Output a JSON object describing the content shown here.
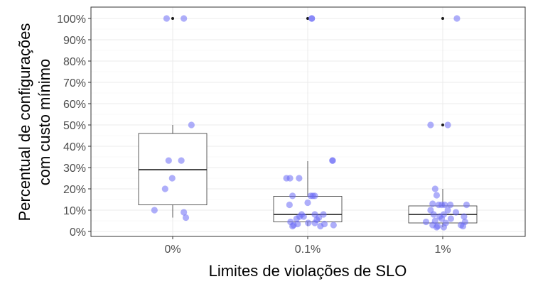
{
  "chart_data": {
    "type": "box",
    "title": "",
    "xlabel": "Limites de violações de SLO",
    "ylabel_lines": [
      "Percentual de configurações",
      "com custo mínimo"
    ],
    "categories": [
      "0%",
      "0.1%",
      "1%"
    ],
    "ylim": [
      0,
      100
    ],
    "yticks": [
      0,
      10,
      20,
      30,
      40,
      50,
      60,
      70,
      80,
      90,
      100
    ],
    "ytick_labels": [
      "0%",
      "10%",
      "20%",
      "30%",
      "40%",
      "50%",
      "60%",
      "70%",
      "80%",
      "90%",
      "100%"
    ],
    "grid": true,
    "point_color": "#6b6bf5",
    "boxes": [
      {
        "category": "0%",
        "q1": 12.5,
        "median": 29,
        "q3": 46,
        "whisker_low": 6.5,
        "whisker_high": 50,
        "outliers": [
          100
        ]
      },
      {
        "category": "0.1%",
        "q1": 4.5,
        "median": 8,
        "q3": 16.5,
        "whisker_low": 2.5,
        "whisker_high": 33,
        "outliers": [
          100
        ]
      },
      {
        "category": "1%",
        "q1": 4,
        "median": 8,
        "q3": 12,
        "whisker_low": 2,
        "whisker_high": 20,
        "outliers": [
          50,
          100
        ]
      }
    ],
    "points": [
      {
        "category": "0%",
        "jitter": -0.12,
        "value": 100
      },
      {
        "category": "0%",
        "jitter": 0.22,
        "value": 100
      },
      {
        "category": "0%",
        "jitter": 0.37,
        "value": 50
      },
      {
        "category": "0%",
        "jitter": -0.08,
        "value": 33.3
      },
      {
        "category": "0%",
        "jitter": 0.17,
        "value": 33.3
      },
      {
        "category": "0%",
        "jitter": -0.01,
        "value": 25
      },
      {
        "category": "0%",
        "jitter": -0.15,
        "value": 20
      },
      {
        "category": "0%",
        "jitter": -0.36,
        "value": 10
      },
      {
        "category": "0%",
        "jitter": 0.22,
        "value": 9
      },
      {
        "category": "0%",
        "jitter": 0.26,
        "value": 6.5
      },
      {
        "category": "0.1%",
        "jitter": 0.08,
        "value": 100
      },
      {
        "category": "0.1%",
        "jitter": 0.08,
        "value": 100
      },
      {
        "category": "0.1%",
        "jitter": 0.49,
        "value": 33.3
      },
      {
        "category": "0.1%",
        "jitter": 0.49,
        "value": 33.3
      },
      {
        "category": "0.1%",
        "jitter": -0.42,
        "value": 25
      },
      {
        "category": "0.1%",
        "jitter": -0.35,
        "value": 25
      },
      {
        "category": "0.1%",
        "jitter": -0.17,
        "value": 25
      },
      {
        "category": "0.1%",
        "jitter": -0.3,
        "value": 16.7
      },
      {
        "category": "0.1%",
        "jitter": 0.06,
        "value": 16.7
      },
      {
        "category": "0.1%",
        "jitter": 0.1,
        "value": 16.7
      },
      {
        "category": "0.1%",
        "jitter": 0.14,
        "value": 16.7
      },
      {
        "category": "0.1%",
        "jitter": 0.0,
        "value": 13.5
      },
      {
        "category": "0.1%",
        "jitter": -0.36,
        "value": 12.5
      },
      {
        "category": "0.1%",
        "jitter": -0.12,
        "value": 8
      },
      {
        "category": "0.1%",
        "jitter": 0.14,
        "value": 8
      },
      {
        "category": "0.1%",
        "jitter": 0.31,
        "value": 8
      },
      {
        "category": "0.1%",
        "jitter": -0.16,
        "value": 7
      },
      {
        "category": "0.1%",
        "jitter": -0.08,
        "value": 7
      },
      {
        "category": "0.1%",
        "jitter": 0.22,
        "value": 6.5
      },
      {
        "category": "0.1%",
        "jitter": -0.22,
        "value": 6
      },
      {
        "category": "0.1%",
        "jitter": 0.18,
        "value": 5.5
      },
      {
        "category": "0.1%",
        "jitter": -0.34,
        "value": 4.5
      },
      {
        "category": "0.1%",
        "jitter": 0.01,
        "value": 4
      },
      {
        "category": "0.1%",
        "jitter": 0.14,
        "value": 4
      },
      {
        "category": "0.1%",
        "jitter": -0.2,
        "value": 3.5
      },
      {
        "category": "0.1%",
        "jitter": 0.33,
        "value": 3.5
      },
      {
        "category": "0.1%",
        "jitter": -0.28,
        "value": 3
      },
      {
        "category": "0.1%",
        "jitter": 0.51,
        "value": 3
      },
      {
        "category": "0.1%",
        "jitter": 0.25,
        "value": 2.5
      },
      {
        "category": "0.1%",
        "jitter": -0.3,
        "value": 2.5
      },
      {
        "category": "1%",
        "jitter": 0.28,
        "value": 100
      },
      {
        "category": "1%",
        "jitter": -0.24,
        "value": 50
      },
      {
        "category": "1%",
        "jitter": 0.1,
        "value": 50
      },
      {
        "category": "1%",
        "jitter": -0.15,
        "value": 20
      },
      {
        "category": "1%",
        "jitter": -0.12,
        "value": 17
      },
      {
        "category": "1%",
        "jitter": -0.2,
        "value": 13
      },
      {
        "category": "1%",
        "jitter": -0.08,
        "value": 12.5
      },
      {
        "category": "1%",
        "jitter": -0.02,
        "value": 12.5
      },
      {
        "category": "1%",
        "jitter": 0.04,
        "value": 12.5
      },
      {
        "category": "1%",
        "jitter": 0.15,
        "value": 12.5
      },
      {
        "category": "1%",
        "jitter": 0.47,
        "value": 12.5
      },
      {
        "category": "1%",
        "jitter": -0.24,
        "value": 10
      },
      {
        "category": "1%",
        "jitter": 0.1,
        "value": 10
      },
      {
        "category": "1%",
        "jitter": 0.26,
        "value": 9
      },
      {
        "category": "1%",
        "jitter": -0.18,
        "value": 8
      },
      {
        "category": "1%",
        "jitter": 0.02,
        "value": 8
      },
      {
        "category": "1%",
        "jitter": -0.06,
        "value": 7
      },
      {
        "category": "1%",
        "jitter": 0.42,
        "value": 7
      },
      {
        "category": "1%",
        "jitter": -0.02,
        "value": 6
      },
      {
        "category": "1%",
        "jitter": 0.16,
        "value": 6
      },
      {
        "category": "1%",
        "jitter": -0.15,
        "value": 5
      },
      {
        "category": "1%",
        "jitter": -0.33,
        "value": 4.5
      },
      {
        "category": "1%",
        "jitter": 0.44,
        "value": 4.5
      },
      {
        "category": "1%",
        "jitter": 0.06,
        "value": 4
      },
      {
        "category": "1%",
        "jitter": -0.2,
        "value": 3
      },
      {
        "category": "1%",
        "jitter": 0.36,
        "value": 3
      },
      {
        "category": "1%",
        "jitter": -0.1,
        "value": 2.5
      },
      {
        "category": "1%",
        "jitter": 0.4,
        "value": 2.5
      },
      {
        "category": "1%",
        "jitter": -0.12,
        "value": 2
      },
      {
        "category": "1%",
        "jitter": 0.02,
        "value": 2
      }
    ]
  }
}
